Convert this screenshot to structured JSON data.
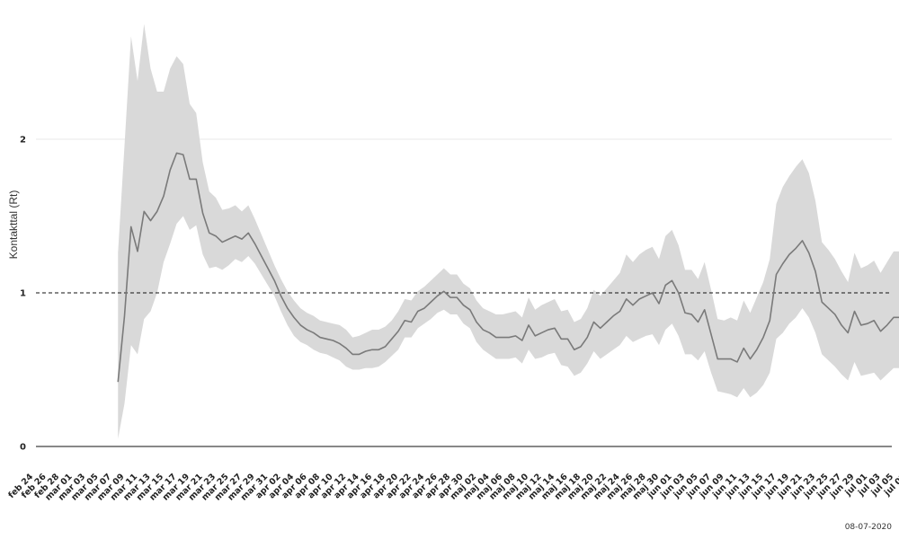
{
  "chart_data": {
    "type": "line",
    "title": "",
    "xlabel": "",
    "ylabel": "Kontakttal (Rt)",
    "ylim": [
      0,
      2.8
    ],
    "yticks": [
      0,
      1,
      2
    ],
    "reference_line": 1,
    "x_ticks": [
      "feb 24",
      "feb 26",
      "feb 28",
      "mar 01",
      "mar 03",
      "mar 05",
      "mar 07",
      "mar 09",
      "mar 11",
      "mar 13",
      "mar 15",
      "mar 17",
      "mar 19",
      "mar 21",
      "mar 23",
      "mar 25",
      "mar 27",
      "mar 29",
      "mar 31",
      "apr 02",
      "apr 04",
      "apr 06",
      "apr 08",
      "apr 10",
      "apr 12",
      "apr 14",
      "apr 16",
      "apr 18",
      "apr 20",
      "apr 22",
      "apr 24",
      "apr 26",
      "apr 28",
      "apr 30",
      "maj 02",
      "maj 04",
      "maj 06",
      "maj 08",
      "maj 10",
      "maj 12",
      "maj 14",
      "maj 16",
      "maj 18",
      "maj 20",
      "maj 22",
      "maj 24",
      "maj 26",
      "maj 28",
      "maj 30",
      "jun 01",
      "jun 03",
      "jun 05",
      "jun 07",
      "jun 09",
      "jun 11",
      "jun 13",
      "jun 15",
      "jun 17",
      "jun 19",
      "jun 21",
      "jun 23",
      "jun 25",
      "jun 27",
      "jun 29",
      "jul 01",
      "jul 03",
      "jul 05",
      "jul 07"
    ],
    "grid": "horizontal",
    "legend": "none",
    "series": [
      {
        "line_color": "#7a7a7a",
        "band_color": "#d9d9d9",
        "start": "2020-03-08",
        "rt": [
          0.42,
          0.85,
          1.43,
          1.27,
          1.53,
          1.47,
          1.53,
          1.63,
          1.8,
          1.91,
          1.9,
          1.74,
          1.74,
          1.52,
          1.39,
          1.37,
          1.33,
          1.35,
          1.37,
          1.35,
          1.39,
          1.32,
          1.24,
          1.16,
          1.08,
          0.98,
          0.9,
          0.84,
          0.79,
          0.76,
          0.74,
          0.71,
          0.7,
          0.69,
          0.67,
          0.64,
          0.6,
          0.6,
          0.62,
          0.63,
          0.63,
          0.65,
          0.7,
          0.75,
          0.82,
          0.81,
          0.88,
          0.9,
          0.94,
          0.98,
          1.01,
          0.97,
          0.97,
          0.92,
          0.89,
          0.81,
          0.76,
          0.74,
          0.71,
          0.71,
          0.71,
          0.72,
          0.69,
          0.79,
          0.72,
          0.74,
          0.76,
          0.77,
          0.7,
          0.7,
          0.63,
          0.65,
          0.71,
          0.81,
          0.77,
          0.81,
          0.85,
          0.88,
          0.96,
          0.92,
          0.96,
          0.98,
          1.0,
          0.93,
          1.05,
          1.08,
          1.0,
          0.87,
          0.86,
          0.81,
          0.89,
          0.73,
          0.57,
          0.57,
          0.57,
          0.55,
          0.64,
          0.57,
          0.63,
          0.71,
          0.82,
          1.12,
          1.19,
          1.25,
          1.29,
          1.34,
          1.26,
          1.14,
          0.94,
          0.9,
          0.86,
          0.79,
          0.74,
          0.88,
          0.79,
          0.8,
          0.82,
          0.75,
          0.79,
          0.84,
          0.84,
          0.83
        ],
        "lower": [
          0.05,
          0.28,
          0.66,
          0.6,
          0.83,
          0.88,
          1.0,
          1.2,
          1.32,
          1.45,
          1.5,
          1.41,
          1.44,
          1.25,
          1.16,
          1.17,
          1.15,
          1.18,
          1.22,
          1.2,
          1.24,
          1.19,
          1.12,
          1.05,
          0.98,
          0.88,
          0.79,
          0.72,
          0.68,
          0.66,
          0.63,
          0.61,
          0.6,
          0.58,
          0.56,
          0.52,
          0.5,
          0.5,
          0.51,
          0.51,
          0.52,
          0.55,
          0.59,
          0.63,
          0.71,
          0.71,
          0.77,
          0.8,
          0.83,
          0.87,
          0.89,
          0.86,
          0.86,
          0.8,
          0.77,
          0.68,
          0.63,
          0.6,
          0.57,
          0.57,
          0.57,
          0.58,
          0.54,
          0.63,
          0.57,
          0.58,
          0.6,
          0.61,
          0.53,
          0.52,
          0.46,
          0.48,
          0.54,
          0.62,
          0.57,
          0.6,
          0.63,
          0.66,
          0.72,
          0.68,
          0.7,
          0.72,
          0.73,
          0.66,
          0.76,
          0.8,
          0.72,
          0.6,
          0.6,
          0.56,
          0.62,
          0.48,
          0.36,
          0.35,
          0.34,
          0.32,
          0.38,
          0.32,
          0.35,
          0.4,
          0.48,
          0.7,
          0.74,
          0.8,
          0.84,
          0.9,
          0.84,
          0.74,
          0.6,
          0.56,
          0.52,
          0.47,
          0.43,
          0.55,
          0.46,
          0.47,
          0.48,
          0.43,
          0.47,
          0.51,
          0.51,
          0.49
        ],
        "upper": [
          1.26,
          1.96,
          2.67,
          2.38,
          2.75,
          2.46,
          2.31,
          2.31,
          2.46,
          2.54,
          2.49,
          2.23,
          2.17,
          1.85,
          1.66,
          1.62,
          1.54,
          1.55,
          1.57,
          1.53,
          1.57,
          1.48,
          1.38,
          1.28,
          1.18,
          1.09,
          1.01,
          0.95,
          0.9,
          0.87,
          0.85,
          0.82,
          0.81,
          0.8,
          0.79,
          0.76,
          0.71,
          0.72,
          0.74,
          0.76,
          0.76,
          0.78,
          0.82,
          0.88,
          0.96,
          0.95,
          1.01,
          1.04,
          1.08,
          1.12,
          1.16,
          1.12,
          1.12,
          1.06,
          1.03,
          0.95,
          0.9,
          0.88,
          0.86,
          0.86,
          0.87,
          0.88,
          0.84,
          0.97,
          0.89,
          0.92,
          0.94,
          0.96,
          0.88,
          0.89,
          0.81,
          0.83,
          0.9,
          1.02,
          0.98,
          1.03,
          1.08,
          1.13,
          1.25,
          1.2,
          1.25,
          1.28,
          1.3,
          1.22,
          1.37,
          1.41,
          1.31,
          1.15,
          1.15,
          1.09,
          1.2,
          1.02,
          0.83,
          0.82,
          0.84,
          0.82,
          0.95,
          0.87,
          0.97,
          1.07,
          1.22,
          1.58,
          1.69,
          1.76,
          1.82,
          1.87,
          1.78,
          1.6,
          1.33,
          1.28,
          1.22,
          1.14,
          1.07,
          1.26,
          1.16,
          1.18,
          1.21,
          1.13,
          1.2,
          1.27,
          1.27,
          1.25
        ]
      }
    ]
  },
  "footnote": "08-07-2020"
}
